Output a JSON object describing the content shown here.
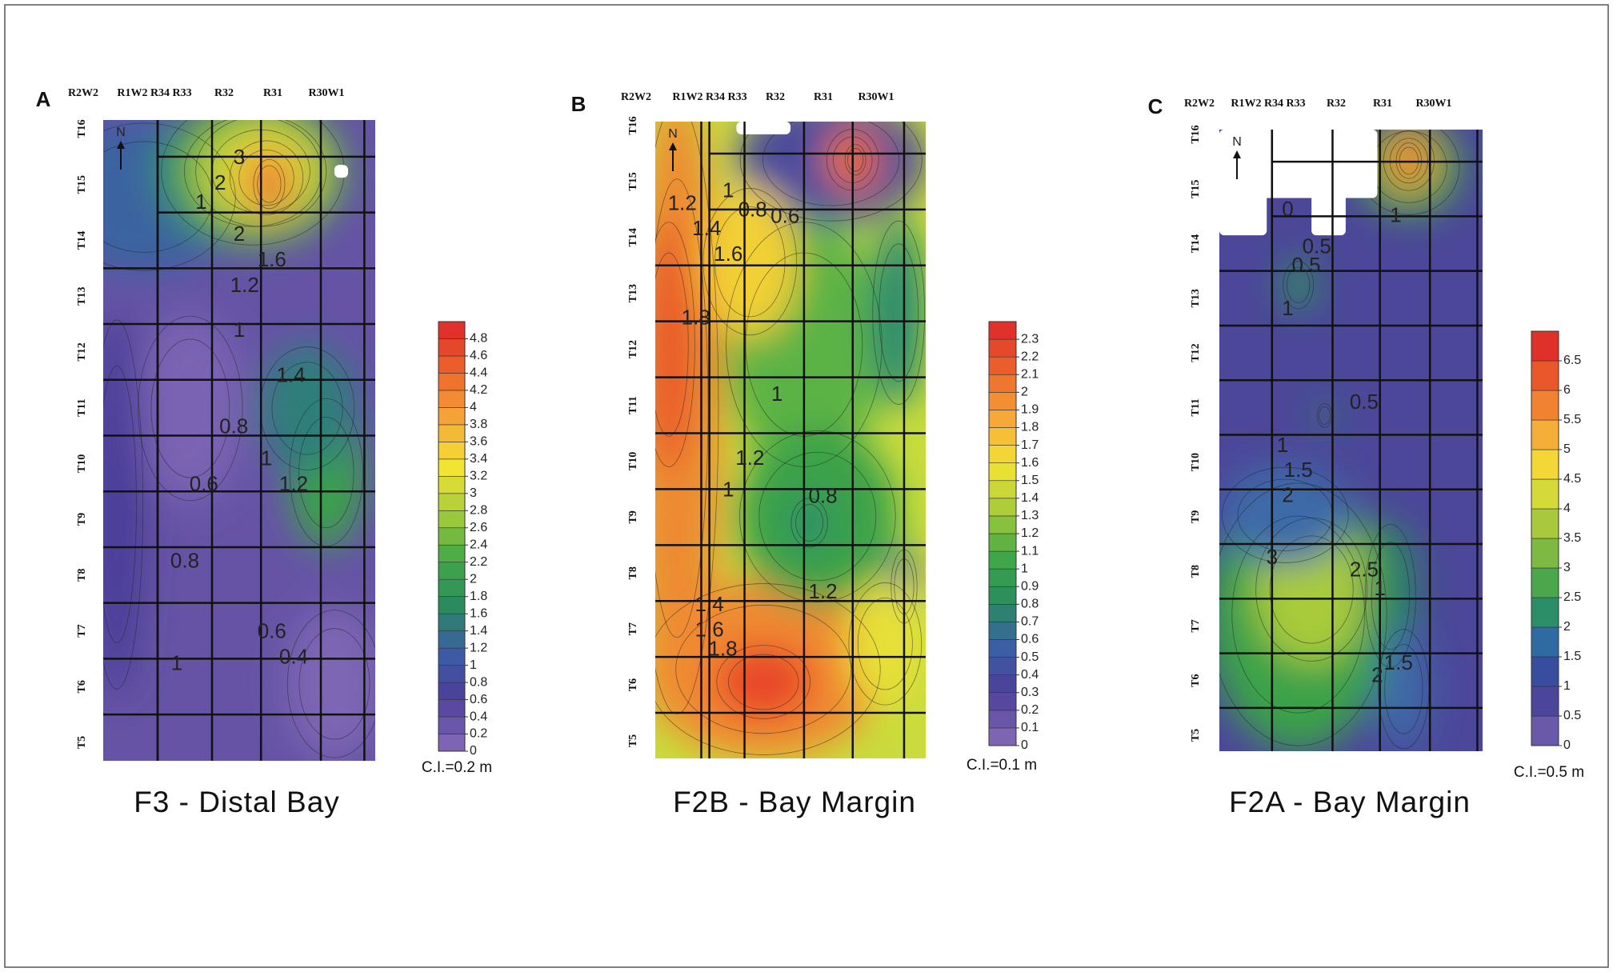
{
  "panels": [
    {
      "letter": "A",
      "ranges": [
        "R2W2",
        "R1W2 R34 R33",
        "R32",
        "R31",
        "R30W1"
      ],
      "townships": [
        "T16",
        "T15",
        "T14",
        "T13",
        "T12",
        "T11",
        "T10",
        "T9",
        "T8",
        "T7",
        "T6",
        "T5"
      ],
      "north": "N",
      "contour_labels": [
        "3",
        "2",
        "1",
        "2",
        "1.6",
        "1.2",
        "1",
        "1.4",
        "0.8",
        "1",
        "1.2",
        "0.6",
        "0.8",
        "0.6",
        "0.4",
        "1"
      ],
      "colorbar": {
        "range": [
          0,
          5
        ],
        "ticks": [
          0,
          0.2,
          0.4,
          0.6,
          0.8,
          1,
          1.2,
          1.4,
          1.6,
          1.8,
          2,
          2.2,
          2.4,
          2.6,
          2.8,
          3,
          3.2,
          3.4,
          3.6,
          3.8,
          4,
          4.2,
          4.4,
          4.6,
          4.8
        ],
        "palette": [
          "#7e65b3",
          "#4c3f99",
          "#3a5fa6",
          "#2a8c5e",
          "#41a847",
          "#a6cc3a",
          "#f2e433",
          "#f6ab3a",
          "#ee6b2b",
          "#e0312b"
        ]
      },
      "interval": "C.I.=0.2 m",
      "caption": "F3 - Distal Bay"
    },
    {
      "letter": "B",
      "ranges": [
        "R2W2",
        "R1W2 R34 R33",
        "R32",
        "R31",
        "R30W1"
      ],
      "townships": [
        "T16",
        "T15",
        "T14",
        "T13",
        "T12",
        "T11",
        "T10",
        "T9",
        "T8",
        "T7",
        "T6",
        "T5"
      ],
      "north": "N",
      "contour_labels": [
        "1.2",
        "1",
        "0.8",
        "0.6",
        "1.4",
        "1.6",
        "1.8",
        "1",
        "1.2",
        "1",
        "0.8",
        "1.2",
        "1.4",
        "1.6",
        "1.8"
      ],
      "colorbar": {
        "range": [
          0,
          2.4
        ],
        "ticks": [
          0,
          0.1,
          0.2,
          0.3,
          0.4,
          0.5,
          0.6,
          0.7,
          0.8,
          0.9,
          1,
          1.1,
          1.2,
          1.3,
          1.4,
          1.5,
          1.6,
          1.7,
          1.8,
          1.9,
          2,
          2.1,
          2.2,
          2.3
        ],
        "palette": [
          "#7e65b3",
          "#4c3f99",
          "#3a5fa6",
          "#2a8c5e",
          "#41a847",
          "#a6cc3a",
          "#f2e433",
          "#f6ab3a",
          "#ee6b2b",
          "#e0312b"
        ]
      },
      "interval": "C.I.=0.1 m",
      "caption": "F2B - Bay Margin"
    },
    {
      "letter": "C",
      "ranges": [
        "R2W2",
        "R1W2 R34 R33",
        "R32",
        "R31",
        "R30W1"
      ],
      "townships": [
        "T16",
        "T15",
        "T14",
        "T13",
        "T12",
        "T11",
        "T10",
        "T9",
        "T8",
        "T7",
        "T6",
        "T5"
      ],
      "north": "N",
      "contour_labels": [
        "0",
        "0.5",
        "1",
        "0.5",
        "1",
        "0.5",
        "1",
        "1.5",
        "2",
        "3",
        "2.5",
        "1",
        "2",
        "1.5"
      ],
      "colorbar": {
        "range": [
          0,
          7
        ],
        "ticks": [
          0,
          0.5,
          1,
          1.5,
          2,
          2.5,
          3,
          3.5,
          4,
          4.5,
          5,
          5.5,
          6,
          6.5
        ],
        "palette": [
          "#6a58a8",
          "#3e3d96",
          "#2f66a8",
          "#2a9a55",
          "#74b642",
          "#b2cd3a",
          "#f1e535",
          "#f5a93a",
          "#ed6a2b",
          "#e0302a"
        ]
      },
      "interval": "C.I.=0.5 m",
      "caption": "F2A - Bay Margin"
    }
  ]
}
